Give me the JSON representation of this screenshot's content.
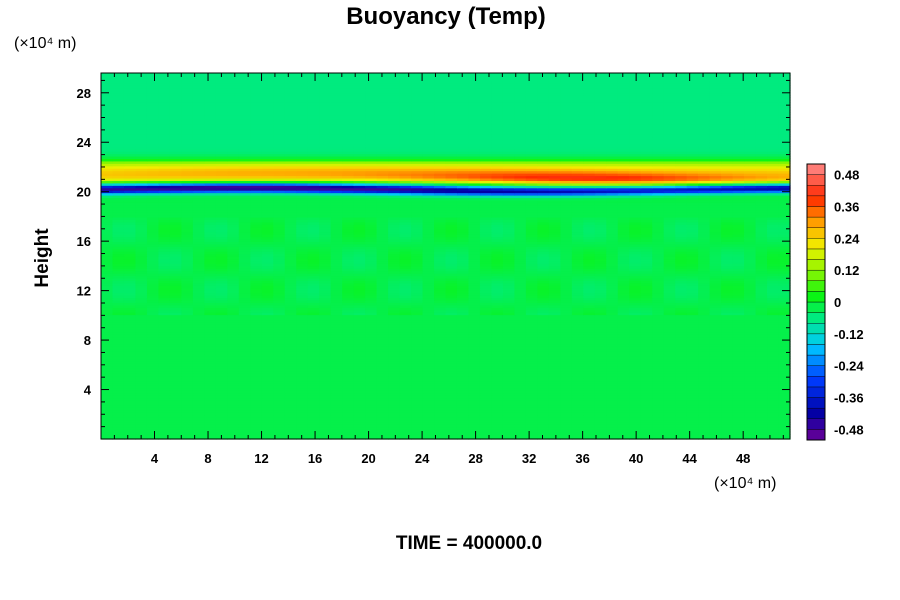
{
  "chart_data": {
    "type": "heatmap",
    "title": "Buoyancy (Temp)",
    "ylabel": "Height",
    "xlabel": "",
    "x_unit_label": "(×10⁴ m)",
    "y_unit_label": "(×10⁴ m)",
    "footer": "TIME = 400000.0",
    "xlim": [
      0,
      51.5
    ],
    "ylim": [
      0,
      29.6
    ],
    "x_ticks": [
      4,
      8,
      12,
      16,
      20,
      24,
      28,
      32,
      36,
      40,
      44,
      48
    ],
    "y_ticks": [
      4,
      8,
      12,
      16,
      20,
      24,
      28
    ],
    "colorbar": {
      "range": [
        -0.52,
        0.52
      ],
      "tick_values": [
        0.48,
        0.36,
        0.24,
        0.12,
        0,
        -0.12,
        -0.24,
        -0.36,
        -0.48
      ],
      "tick_labels": [
        "0.48",
        "0.36",
        "0.24",
        "0.12",
        "0",
        "-0.12",
        "-0.24",
        "-0.36",
        "-0.48"
      ],
      "levels": 26
    },
    "field": {
      "background_value": -0.02,
      "upper_value": -0.06,
      "layers": [
        {
          "name": "warm band",
          "height_center": 21.1,
          "height_half_width": 0.55,
          "peak_value": 0.42
        },
        {
          "name": "warm fringe",
          "height_center": 22.0,
          "height_half_width": 0.5,
          "peak_value": 0.16
        },
        {
          "name": "cold band",
          "height_center": 20.2,
          "height_half_width": 0.25,
          "peak_value": -0.46
        },
        {
          "name": "cool fringe",
          "height_center": 20.6,
          "height_half_width": 0.25,
          "peak_value": -0.14
        }
      ]
    }
  },
  "colors": {
    "background": "#ffffff",
    "axis": "#000000"
  }
}
